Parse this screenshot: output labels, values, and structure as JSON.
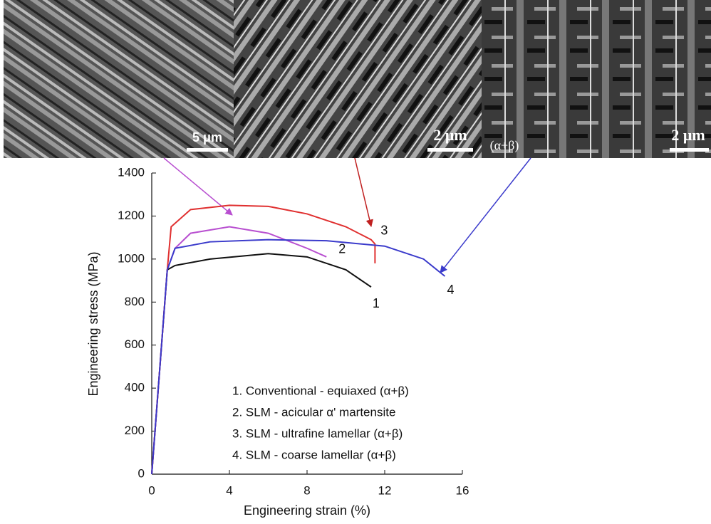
{
  "micrographs": [
    {
      "scale_label": "5 μm"
    },
    {
      "scale_label": "2 μm",
      "note": "(α+β)"
    },
    {
      "scale_label": "2 μm"
    }
  ],
  "chart_data": {
    "type": "line",
    "x_label": "Engineering strain (%)",
    "y_label": "Engineering stress (MPa)",
    "xlim": [
      0,
      16
    ],
    "xticks": [
      0,
      4,
      8,
      12,
      16
    ],
    "ylim": [
      0,
      1400
    ],
    "yticks": [
      0,
      200,
      400,
      600,
      800,
      1000,
      1200,
      1400
    ],
    "grid": false,
    "series": [
      {
        "name": "1. Conventional - equiaxed (α+β)",
        "label": "1",
        "color": "#111111",
        "x": [
          0,
          0.8,
          1.2,
          3,
          6,
          8,
          10,
          11.3
        ],
        "values": [
          0,
          950,
          970,
          1000,
          1025,
          1010,
          950,
          870
        ]
      },
      {
        "name": "2. SLM - acicular α' martensite",
        "label": "2",
        "color": "#b84fd0",
        "x": [
          0,
          0.8,
          1.2,
          2,
          4,
          6,
          8,
          9
        ],
        "values": [
          0,
          950,
          1050,
          1120,
          1150,
          1120,
          1050,
          1010
        ]
      },
      {
        "name": "3. SLM - ultrafine lamellar (α+β)",
        "label": "3",
        "color": "#e03030",
        "x": [
          0,
          0.8,
          1,
          2,
          4,
          6,
          8,
          10,
          11.3,
          11.5,
          11.5
        ],
        "values": [
          0,
          950,
          1150,
          1230,
          1250,
          1245,
          1210,
          1150,
          1090,
          1070,
          980
        ]
      },
      {
        "name": "4. SLM - coarse lamellar (α+β)",
        "label": "4",
        "color": "#3a3acb",
        "x": [
          0,
          0.8,
          1.2,
          3,
          6,
          9,
          12,
          14,
          15.1
        ],
        "values": [
          0,
          950,
          1050,
          1080,
          1090,
          1085,
          1060,
          1000,
          920
        ]
      }
    ]
  }
}
